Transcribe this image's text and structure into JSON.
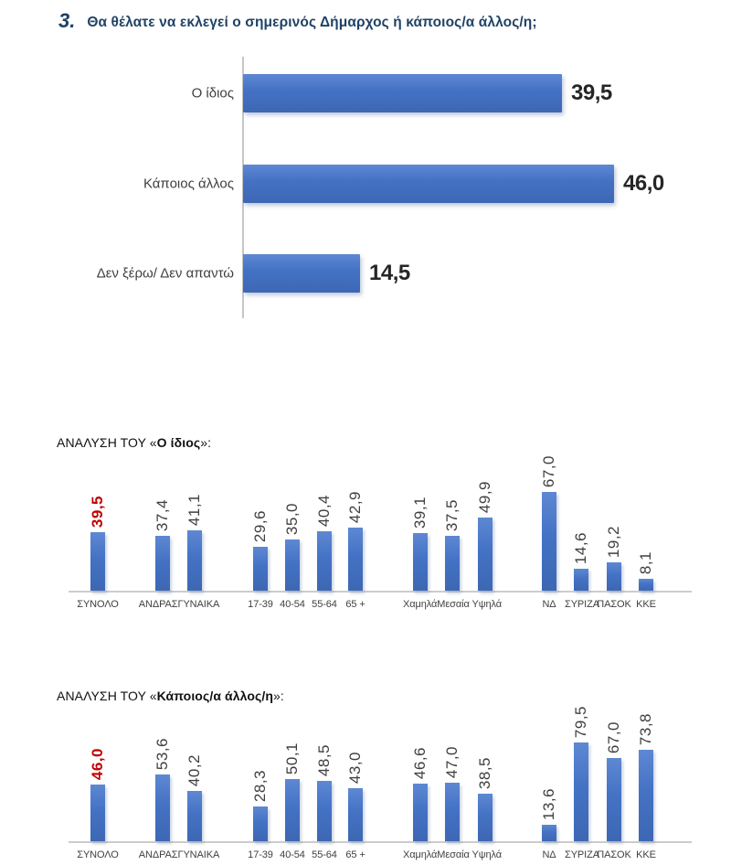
{
  "title": {
    "number": "3.",
    "text": "Θα θέλατε να εκλεγεί ο σημερινός Δήμαρχος ή κάποιος/α άλλος/η;"
  },
  "colors": {
    "bar_blue": "#4472C4",
    "highlight_red": "#C00000",
    "title_navy": "#1F4266",
    "axis_gray": "#C6C6C6",
    "label_gray": "#3F3F3F"
  },
  "chart_data": [
    {
      "type": "bar",
      "orientation": "horizontal",
      "title": "",
      "categories": [
        "Ο ίδιος",
        "Κάποιος άλλος",
        "Δεν ξέρω/ Δεν απαντώ"
      ],
      "values": [
        39.5,
        46.0,
        14.5
      ],
      "labels": [
        "39,5",
        "46,0",
        "14,5"
      ],
      "xlim": [
        0,
        52
      ],
      "grid": false,
      "legend": false
    },
    {
      "type": "bar",
      "orientation": "vertical",
      "title": {
        "prefix": "ΑΝΑΛΥΣΗ ΤΟΥ «",
        "emphasis": "Ο ίδιος",
        "suffix": "»:"
      },
      "categories": [
        "ΣΥΝΟΛΟ",
        "ΑΝΔΡΑΣ",
        "ΓΥΝΑΙΚΑ",
        "17-39",
        "40-54",
        "55-64",
        "65 +",
        "Χαμηλά",
        "Μεσαία",
        "Υψηλά",
        "ΝΔ",
        "ΣΥΡΙΖΑ",
        "ΠΑΣΟΚ",
        "ΚΚΕ"
      ],
      "values": [
        39.5,
        37.4,
        41.1,
        29.6,
        35.0,
        40.4,
        42.9,
        39.1,
        37.5,
        49.9,
        67.0,
        14.6,
        19.2,
        8.1
      ],
      "labels": [
        "39,5",
        "37,4",
        "41,1",
        "29,6",
        "35,0",
        "40,4",
        "42,9",
        "39,1",
        "37,5",
        "49,9",
        "67,0",
        "14,6",
        "19,2",
        "8,1"
      ],
      "highlight_index": 0,
      "axis_row": [
        "ΣΥΝΟΛΟ",
        "ΑΝΔΡΑΣΓΥΝΑΙΚΑ",
        "17-39",
        "40-54",
        "55-64",
        "65 +",
        "ΧαμηλάΜεσαία Υψηλά",
        "ΝΔ",
        "ΣΥΡΙΖΑ",
        "ΠΑΣΟΚ",
        "ΚΚΕ"
      ],
      "ylim": [
        0,
        80
      ],
      "grid": false,
      "legend": false
    },
    {
      "type": "bar",
      "orientation": "vertical",
      "title": {
        "prefix": "ΑΝΑΛΥΣΗ ΤΟΥ «",
        "emphasis": "Κάποιος/α  άλλος/η",
        "suffix": "»:"
      },
      "categories": [
        "ΣΥΝΟΛΟ",
        "ΑΝΔΡΑΣ",
        "ΓΥΝΑΙΚΑ",
        "17-39",
        "40-54",
        "55-64",
        "65 +",
        "Χαμηλά",
        "Μεσαία",
        "Υψηλά",
        "ΝΔ",
        "ΣΥΡΙΖΑ",
        "ΠΑΣΟΚ",
        "ΚΚΕ"
      ],
      "values": [
        46.0,
        53.6,
        40.2,
        28.3,
        50.1,
        48.5,
        43.0,
        46.6,
        47.0,
        38.5,
        13.6,
        79.5,
        67.0,
        73.8
      ],
      "labels": [
        "46,0",
        "53,6",
        "40,2",
        "28,3",
        "50,1",
        "48,5",
        "43,0",
        "46,6",
        "47,0",
        "38,5",
        "13,6",
        "79,5",
        "67,0",
        "73,8"
      ],
      "highlight_index": 0,
      "axis_row": [
        "ΣΥΝΟΛΟ",
        "ΑΝΔΡΑΣΓΥΝΑΙΚΑ",
        "17-39",
        "40-54",
        "55-64",
        "65 +",
        "ΧαμηλάΜεσαία Υψηλά",
        "ΝΔ",
        "ΣΥΡΙΖΑ",
        "ΠΑΣΟΚ",
        "ΚΚΕ"
      ],
      "ylim": [
        0,
        85
      ],
      "grid": false,
      "legend": false
    }
  ]
}
